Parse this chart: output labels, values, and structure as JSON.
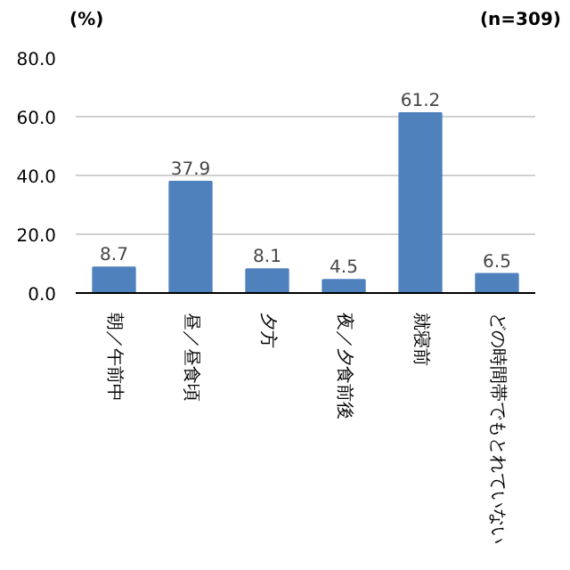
{
  "chart_data": {
    "type": "bar",
    "ylabel": "(%)",
    "annotations": [
      "(n=309)"
    ],
    "categories": [
      "朝／午前中",
      "昼／昼食頃",
      "夕方",
      "夜／夕食前後",
      "就寝前",
      "どの時間帯でもとれていない"
    ],
    "values": [
      8.7,
      37.9,
      8.1,
      4.5,
      61.2,
      6.5
    ],
    "color": "#4f81bd",
    "ylim": [
      0,
      80
    ],
    "yticks": [
      {
        "value": 0,
        "label": "0.0"
      },
      {
        "value": 20,
        "label": "20.0"
      },
      {
        "value": 40,
        "label": "40.0"
      },
      {
        "value": 60,
        "label": "60.0"
      },
      {
        "value": 80,
        "label": "80.0"
      }
    ],
    "grid": "y",
    "data_labels": true
  }
}
